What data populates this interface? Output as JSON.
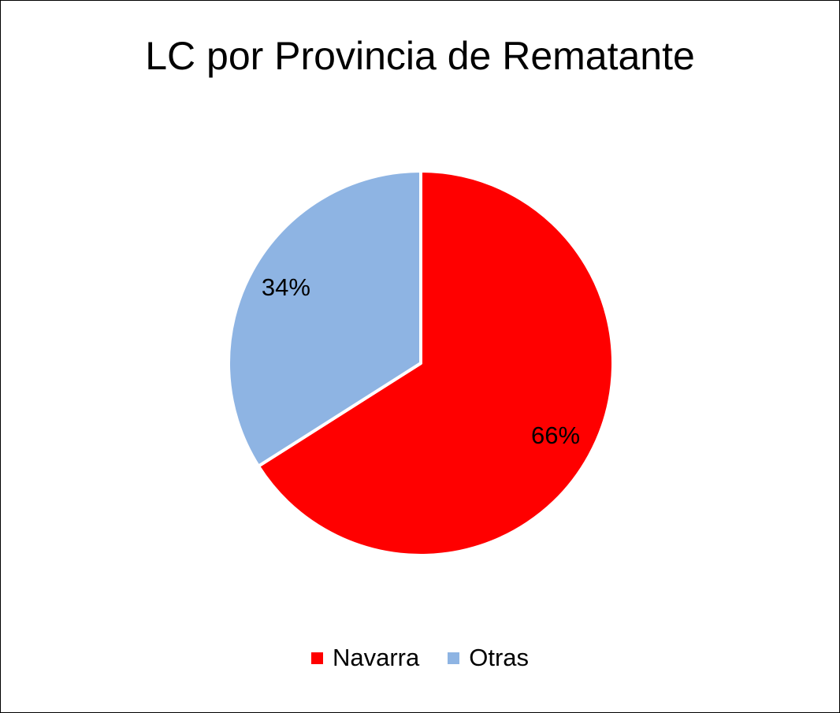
{
  "chart_data": {
    "type": "pie",
    "title": "LC por Provincia de Rematante",
    "categories": [
      "Navarra",
      "Otras"
    ],
    "values": [
      66,
      34
    ],
    "labels": [
      "66%",
      "34%"
    ],
    "colors": [
      "#ff0000",
      "#8eb4e3"
    ],
    "legend_position": "bottom",
    "start_angle_deg": 0,
    "direction": "clockwise"
  }
}
